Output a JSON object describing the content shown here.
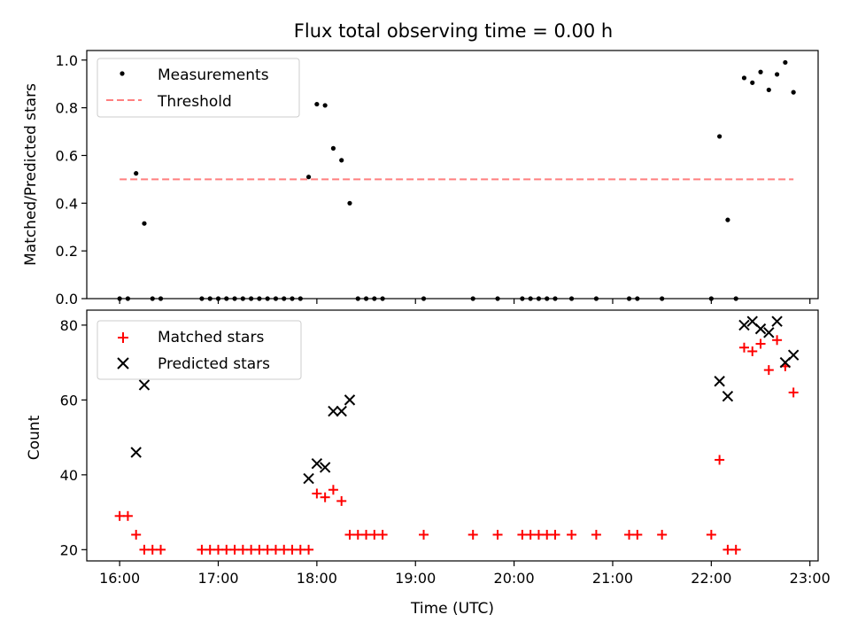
{
  "chart_data": [
    {
      "type": "scatter",
      "title": "Flux total observing time = 0.00 h",
      "ylabel": "Matched/Predicted stars",
      "xlim": [
        "15:40",
        "23:05"
      ],
      "ylim": [
        0,
        1.04
      ],
      "yticks": [
        "0.0",
        "0.2",
        "0.4",
        "0.6",
        "0.8",
        "1.0"
      ],
      "legend_position": "top-left",
      "series": [
        {
          "name": "Measurements",
          "marker": "dot",
          "color": "#000000",
          "points": [
            [
              "16:00",
              0
            ],
            [
              "16:05",
              0
            ],
            [
              "16:10",
              0.525
            ],
            [
              "16:15",
              0.315
            ],
            [
              "16:20",
              0
            ],
            [
              "16:25",
              0
            ],
            [
              "16:50",
              0
            ],
            [
              "16:55",
              0
            ],
            [
              "17:00",
              0
            ],
            [
              "17:05",
              0
            ],
            [
              "17:10",
              0
            ],
            [
              "17:15",
              0
            ],
            [
              "17:20",
              0
            ],
            [
              "17:25",
              0
            ],
            [
              "17:30",
              0
            ],
            [
              "17:35",
              0
            ],
            [
              "17:40",
              0
            ],
            [
              "17:45",
              0
            ],
            [
              "17:50",
              0
            ],
            [
              "17:55",
              0.51
            ],
            [
              "18:00",
              0.815
            ],
            [
              "18:05",
              0.81
            ],
            [
              "18:10",
              0.63
            ],
            [
              "18:15",
              0.58
            ],
            [
              "18:20",
              0.4
            ],
            [
              "18:25",
              0
            ],
            [
              "18:30",
              0
            ],
            [
              "18:35",
              0
            ],
            [
              "18:40",
              0
            ],
            [
              "19:05",
              0
            ],
            [
              "19:35",
              0
            ],
            [
              "19:50",
              0
            ],
            [
              "20:05",
              0
            ],
            [
              "20:10",
              0
            ],
            [
              "20:15",
              0
            ],
            [
              "20:20",
              0
            ],
            [
              "20:25",
              0
            ],
            [
              "20:35",
              0
            ],
            [
              "20:50",
              0
            ],
            [
              "21:10",
              0
            ],
            [
              "21:15",
              0
            ],
            [
              "21:30",
              0
            ],
            [
              "22:00",
              0
            ],
            [
              "22:05",
              0.68
            ],
            [
              "22:10",
              0.33
            ],
            [
              "22:15",
              0
            ],
            [
              "22:20",
              0.925
            ],
            [
              "22:25",
              0.905
            ],
            [
              "22:30",
              0.95
            ],
            [
              "22:35",
              0.875
            ],
            [
              "22:40",
              0.94
            ],
            [
              "22:45",
              0.99
            ],
            [
              "22:50",
              0.865
            ]
          ]
        },
        {
          "name": "Threshold",
          "style": "dashed-line",
          "color": "#ff7f7f",
          "points": [
            [
              "16:00",
              0.5
            ],
            [
              "22:50",
              0.5
            ]
          ]
        }
      ]
    },
    {
      "type": "scatter",
      "xlabel": "Time (UTC)",
      "ylabel": "Count",
      "xlim": [
        "15:40",
        "23:05"
      ],
      "ylim": [
        17,
        84
      ],
      "yticks": [
        "20",
        "40",
        "60",
        "80"
      ],
      "xticks": [
        "16:00",
        "17:00",
        "18:00",
        "19:00",
        "20:00",
        "21:00",
        "22:00",
        "23:00"
      ],
      "legend_position": "top-left",
      "series": [
        {
          "name": "Matched stars",
          "marker": "plus",
          "color": "#ff0000",
          "points": [
            [
              "16:00",
              29
            ],
            [
              "16:05",
              29
            ],
            [
              "16:10",
              24
            ],
            [
              "16:15",
              20
            ],
            [
              "16:20",
              20
            ],
            [
              "16:25",
              20
            ],
            [
              "16:50",
              20
            ],
            [
              "16:55",
              20
            ],
            [
              "17:00",
              20
            ],
            [
              "17:05",
              20
            ],
            [
              "17:10",
              20
            ],
            [
              "17:15",
              20
            ],
            [
              "17:20",
              20
            ],
            [
              "17:25",
              20
            ],
            [
              "17:30",
              20
            ],
            [
              "17:35",
              20
            ],
            [
              "17:40",
              20
            ],
            [
              "17:45",
              20
            ],
            [
              "17:50",
              20
            ],
            [
              "17:55",
              20
            ],
            [
              "18:00",
              35
            ],
            [
              "18:05",
              34
            ],
            [
              "18:10",
              36
            ],
            [
              "18:15",
              33
            ],
            [
              "18:20",
              24
            ],
            [
              "18:25",
              24
            ],
            [
              "18:30",
              24
            ],
            [
              "18:35",
              24
            ],
            [
              "18:40",
              24
            ],
            [
              "19:05",
              24
            ],
            [
              "19:35",
              24
            ],
            [
              "19:50",
              24
            ],
            [
              "20:05",
              24
            ],
            [
              "20:10",
              24
            ],
            [
              "20:15",
              24
            ],
            [
              "20:20",
              24
            ],
            [
              "20:25",
              24
            ],
            [
              "20:35",
              24
            ],
            [
              "20:50",
              24
            ],
            [
              "21:10",
              24
            ],
            [
              "21:15",
              24
            ],
            [
              "21:30",
              24
            ],
            [
              "22:00",
              24
            ],
            [
              "22:05",
              44
            ],
            [
              "22:10",
              20
            ],
            [
              "22:15",
              20
            ],
            [
              "22:20",
              74
            ],
            [
              "22:25",
              73
            ],
            [
              "22:30",
              75
            ],
            [
              "22:35",
              68
            ],
            [
              "22:40",
              76
            ],
            [
              "22:45",
              69
            ],
            [
              "22:50",
              62
            ]
          ]
        },
        {
          "name": "Predicted stars",
          "marker": "x",
          "color": "#000000",
          "points": [
            [
              "16:10",
              46
            ],
            [
              "16:15",
              64
            ],
            [
              "17:55",
              39
            ],
            [
              "18:00",
              43
            ],
            [
              "18:05",
              42
            ],
            [
              "18:10",
              57
            ],
            [
              "18:15",
              57
            ],
            [
              "18:20",
              60
            ],
            [
              "22:05",
              65
            ],
            [
              "22:10",
              61
            ],
            [
              "22:20",
              80
            ],
            [
              "22:25",
              81
            ],
            [
              "22:30",
              79
            ],
            [
              "22:35",
              78
            ],
            [
              "22:40",
              81
            ],
            [
              "22:45",
              70
            ],
            [
              "22:50",
              72
            ]
          ]
        }
      ]
    }
  ]
}
